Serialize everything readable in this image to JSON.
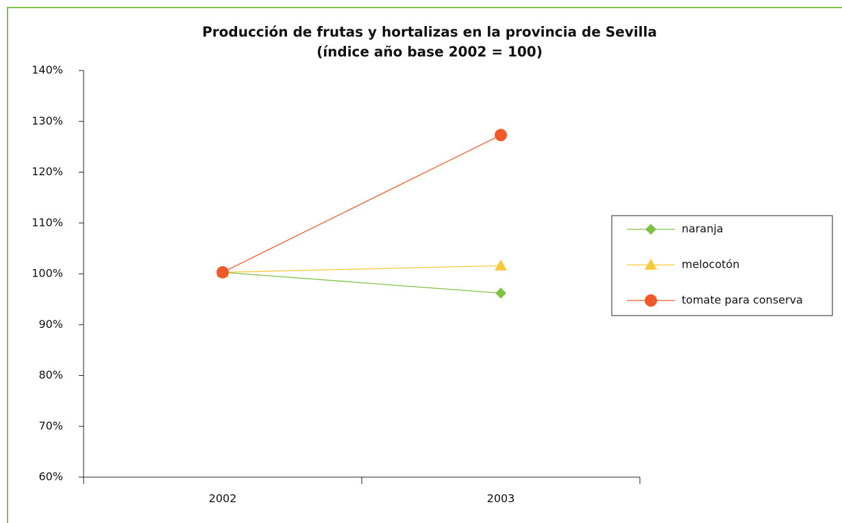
{
  "chart_data": {
    "type": "line",
    "title": "Producción de frutas y hortalizas en la provincia de Sevilla",
    "subtitle": "(índice año base 2002 = 100)",
    "categories": [
      "2002",
      "2003"
    ],
    "series": [
      {
        "name": "naranja",
        "color": "#7dc242",
        "marker": "diamond",
        "values": [
          100.3,
          96.2
        ]
      },
      {
        "name": "melocotón",
        "color": "#f9c93b",
        "marker": "triangle",
        "values": [
          100.3,
          101.6
        ]
      },
      {
        "name": "tomate para conserva",
        "color": "#f05a28",
        "marker": "circle",
        "values": [
          100.3,
          127.3
        ]
      }
    ],
    "ylim": [
      60,
      140
    ],
    "yticks": [
      {
        "value": 60,
        "label": "60%"
      },
      {
        "value": 70,
        "label": "70%"
      },
      {
        "value": 80,
        "label": "80%"
      },
      {
        "value": 90,
        "label": "90%"
      },
      {
        "value": 100,
        "label": "100%"
      },
      {
        "value": 110,
        "label": "110%"
      },
      {
        "value": 120,
        "label": "120%"
      },
      {
        "value": 130,
        "label": "130%"
      },
      {
        "value": 140,
        "label": "140%"
      }
    ],
    "grid": false,
    "legend": "right"
  }
}
